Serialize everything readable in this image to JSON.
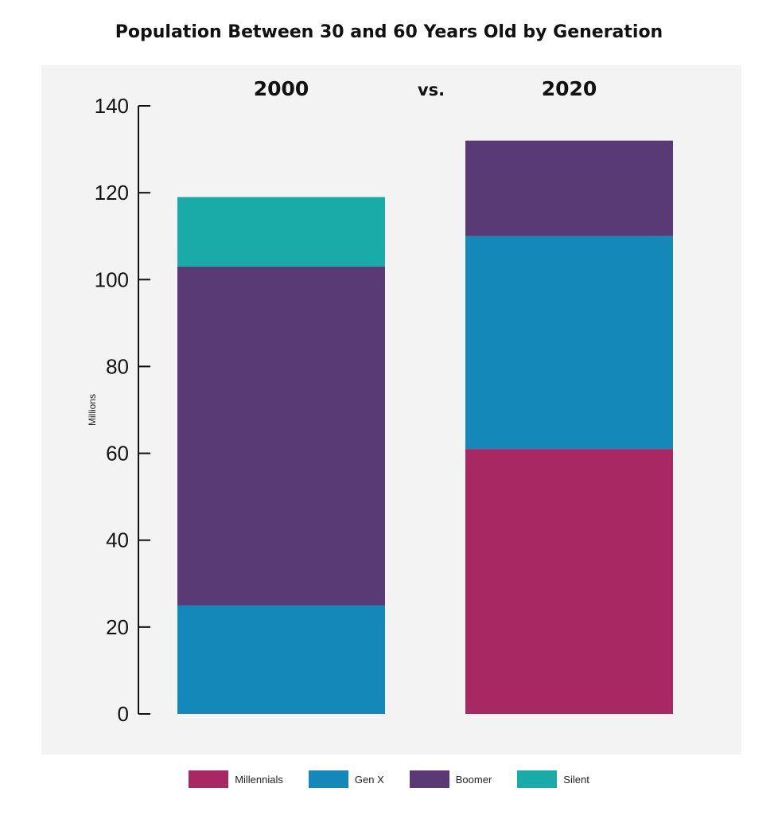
{
  "chart_data": {
    "type": "bar",
    "stacked": true,
    "title": "Population Between 30 and 60 Years Old by Generation",
    "ylabel": "Millions",
    "ylim": [
      0,
      140
    ],
    "yticks": [
      0,
      20,
      40,
      60,
      80,
      100,
      120,
      140
    ],
    "categories": [
      "2000",
      "2020"
    ],
    "separator_label": "vs.",
    "series": [
      {
        "name": "Millennials",
        "color": "#a82864",
        "values": [
          0,
          61
        ]
      },
      {
        "name": "Gen X",
        "color": "#1488b8",
        "values": [
          25,
          49
        ]
      },
      {
        "name": "Boomer",
        "color": "#5a3a74",
        "values": [
          78,
          22
        ]
      },
      {
        "name": "Silent",
        "color": "#1aaaa8",
        "values": [
          16,
          0
        ]
      }
    ],
    "legend_position": "bottom"
  }
}
